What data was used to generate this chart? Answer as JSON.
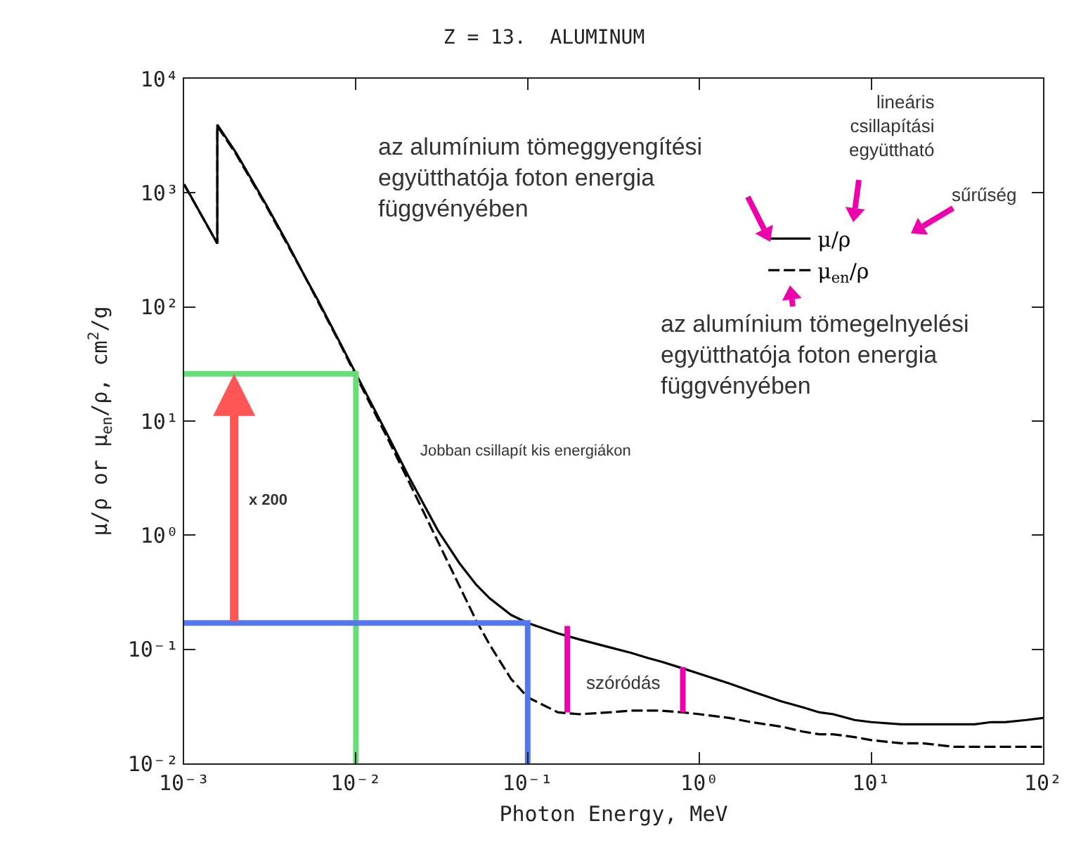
{
  "chart_data": {
    "type": "line",
    "title": "Z = 13.  ALUMINUM",
    "xlabel": "Photon Energy, MeV",
    "ylabel": "μ/ρ or μ$_{en}$/ρ, cm$^{2}$/g",
    "log": "xy",
    "grid": false,
    "marker": "none",
    "legend": "top right",
    "xlim": [
      0.001,
      100
    ],
    "ylim": [
      0.01,
      10000
    ],
    "xticks": [
      {
        "value": 0.001,
        "label": "10⁻³"
      },
      {
        "value": 0.01,
        "label": "10⁻²"
      },
      {
        "value": 0.1,
        "label": "10⁻¹"
      },
      {
        "value": 1,
        "label": "10⁰"
      },
      {
        "value": 10,
        "label": "10¹"
      },
      {
        "value": 100,
        "label": "10²"
      }
    ],
    "yticks": [
      {
        "value": 0.01,
        "label": "10⁻²"
      },
      {
        "value": 0.1,
        "label": "10⁻¹"
      },
      {
        "value": 1,
        "label": "10⁰"
      },
      {
        "value": 10,
        "label": "10¹"
      },
      {
        "value": 100,
        "label": "10²"
      },
      {
        "value": 1000,
        "label": "10³"
      },
      {
        "value": 10000,
        "label": "10⁴"
      }
    ],
    "series": [
      {
        "name": "μ/ρ",
        "color": "#000000",
        "line_style": "solid",
        "x": [
          0.001,
          0.0015,
          0.00156,
          0.00156,
          0.002,
          0.003,
          0.004,
          0.005,
          0.006,
          0.008,
          0.01,
          0.015,
          0.02,
          0.03,
          0.04,
          0.05,
          0.06,
          0.08,
          0.1,
          0.15,
          0.2,
          0.3,
          0.4,
          0.5,
          0.6,
          0.8,
          1,
          1.5,
          2,
          3,
          4,
          5,
          6,
          8,
          10,
          15,
          20,
          30,
          40,
          50,
          60,
          80,
          100
        ],
        "values": [
          1190,
          400,
          360,
          3960,
          2260,
          790,
          360,
          190,
          115,
          50,
          26,
          8,
          3.4,
          1.1,
          0.57,
          0.37,
          0.28,
          0.2,
          0.17,
          0.138,
          0.122,
          0.104,
          0.093,
          0.084,
          0.078,
          0.068,
          0.061,
          0.05,
          0.043,
          0.035,
          0.031,
          0.028,
          0.027,
          0.024,
          0.023,
          0.022,
          0.022,
          0.022,
          0.022,
          0.023,
          0.023,
          0.024,
          0.025
        ]
      },
      {
        "name": "μ$_{en}$/ρ",
        "color": "#000000",
        "line_style": "dashed",
        "x": [
          0.001,
          0.0015,
          0.00156,
          0.00156,
          0.002,
          0.003,
          0.004,
          0.005,
          0.006,
          0.008,
          0.01,
          0.015,
          0.02,
          0.03,
          0.04,
          0.05,
          0.06,
          0.08,
          0.1,
          0.15,
          0.2,
          0.3,
          0.4,
          0.5,
          0.6,
          0.8,
          1,
          1.5,
          2,
          3,
          4,
          5,
          6,
          8,
          10,
          15,
          20,
          30,
          40,
          50,
          60,
          80,
          100
        ],
        "values": [
          1180,
          400,
          360,
          3830,
          2200,
          770,
          350,
          190,
          112,
          49,
          25,
          7.5,
          3.1,
          0.88,
          0.36,
          0.18,
          0.11,
          0.055,
          0.038,
          0.028,
          0.027,
          0.028,
          0.029,
          0.029,
          0.029,
          0.028,
          0.027,
          0.025,
          0.023,
          0.021,
          0.019,
          0.018,
          0.018,
          0.017,
          0.016,
          0.015,
          0.015,
          0.014,
          0.014,
          0.014,
          0.014,
          0.014,
          0.014
        ]
      },
      {
        "color": "#66dd77",
        "line_style": "solid",
        "x": [
          0.001,
          0.01,
          0.01
        ],
        "values": [
          26,
          26,
          0.01
        ]
      },
      {
        "color": "#5577ee",
        "line_style": "solid",
        "x": [
          0.001,
          0.1,
          0.1
        ],
        "values": [
          0.17,
          0.17,
          0.01
        ]
      },
      {
        "color": "#ee00aa",
        "line_style": "solid",
        "x": [
          0.17,
          0.17
        ],
        "values": [
          0.028,
          0.16
        ]
      },
      {
        "color": "#ee00aa",
        "line_style": "solid",
        "x": [
          0.8,
          0.8
        ],
        "values": [
          0.028,
          0.07
        ]
      }
    ],
    "annotations": [
      "az alumínium tömeggyengítési\negyütthatója foton energia\nfüggvényében",
      "lineáris\ncsillapítási\negyüttható",
      "sűrűség",
      "az alumínium tömegelnyelési\negyütthatója foton energia\nfüggvényében",
      "Jobban csillapít kis energiákon",
      "x 200",
      "szóródás"
    ]
  }
}
